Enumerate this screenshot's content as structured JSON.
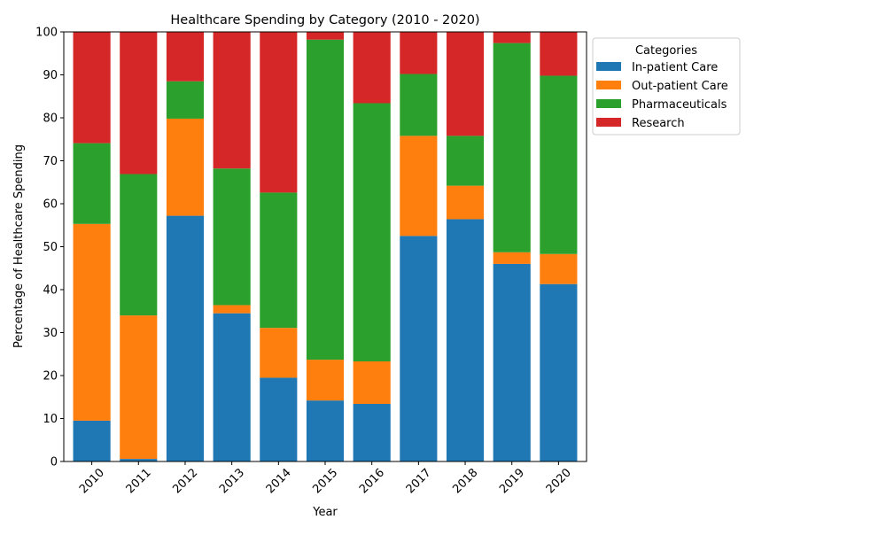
{
  "chart_data": {
    "type": "bar",
    "stacked": true,
    "title": "Healthcare Spending by Category (2010 - 2020)",
    "xlabel": "Year",
    "ylabel": "Percentage of Healthcare Spending",
    "ylim": [
      0,
      100
    ],
    "yticks": [
      0,
      10,
      20,
      30,
      40,
      50,
      60,
      70,
      80,
      90,
      100
    ],
    "categories": [
      "2010",
      "2011",
      "2012",
      "2013",
      "2014",
      "2015",
      "2016",
      "2017",
      "2018",
      "2019",
      "2020"
    ],
    "legend_title": "Categories",
    "legend_position": "outside-top-right",
    "grid": false,
    "series": [
      {
        "name": "In-patient Care",
        "color": "#1f77b4",
        "values": [
          9.5,
          0.6,
          57.2,
          34.5,
          19.5,
          14.2,
          13.4,
          52.5,
          56.4,
          46.0,
          41.3
        ]
      },
      {
        "name": "Out-patient Care",
        "color": "#ff7f0e",
        "values": [
          45.8,
          33.4,
          22.6,
          1.9,
          11.6,
          9.5,
          9.9,
          23.3,
          7.8,
          2.7,
          7.0
        ]
      },
      {
        "name": "Pharmaceuticals",
        "color": "#2ca02c",
        "values": [
          18.8,
          32.9,
          8.7,
          31.8,
          31.5,
          74.5,
          60.1,
          14.4,
          11.6,
          48.7,
          41.5
        ]
      },
      {
        "name": "Research",
        "color": "#d62728",
        "values": [
          25.9,
          33.1,
          11.5,
          31.8,
          37.4,
          1.8,
          16.6,
          9.8,
          24.2,
          2.6,
          10.2
        ]
      }
    ]
  }
}
